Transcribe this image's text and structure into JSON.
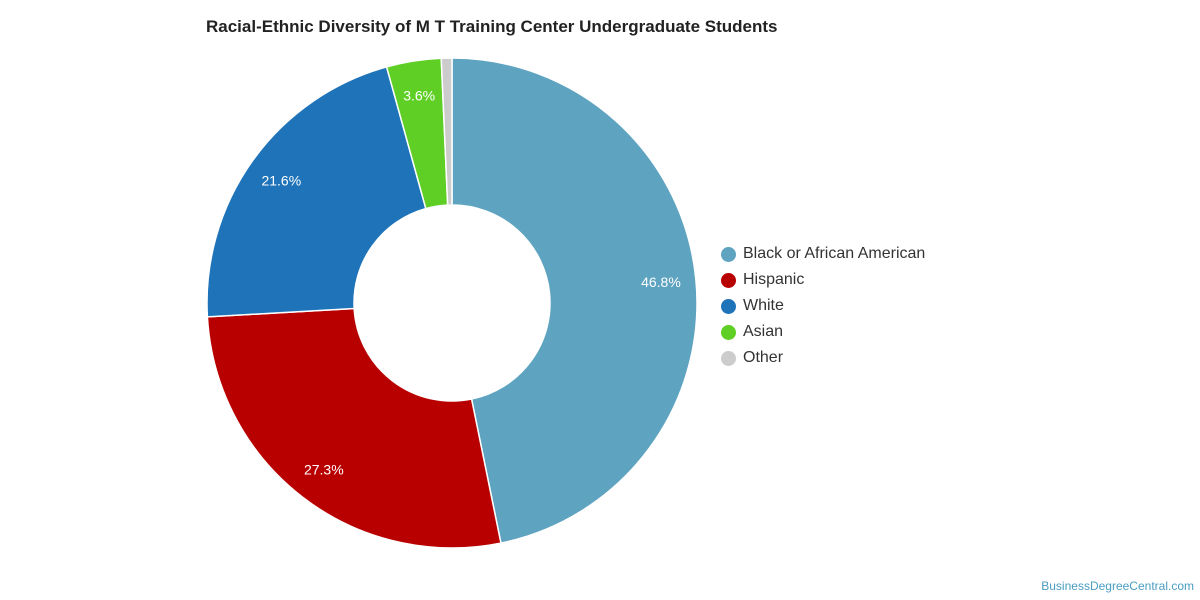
{
  "chart_data": {
    "type": "pie",
    "title": "Racial-Ethnic Diversity of M T Training Center Undergraduate Students",
    "donut": true,
    "legend_position": "right",
    "categories": [
      "Black or African American",
      "Hispanic",
      "White",
      "Asian",
      "Other"
    ],
    "values": [
      46.8,
      27.3,
      21.6,
      3.6,
      0.7
    ],
    "value_labels": [
      "46.8%",
      "27.3%",
      "21.6%",
      "3.6%",
      ""
    ],
    "colors": [
      "#5ea3c0",
      "#b90000",
      "#1e73b9",
      "#5fcf25",
      "#cccccc"
    ]
  },
  "credit": "BusinessDegreeCentral.com"
}
